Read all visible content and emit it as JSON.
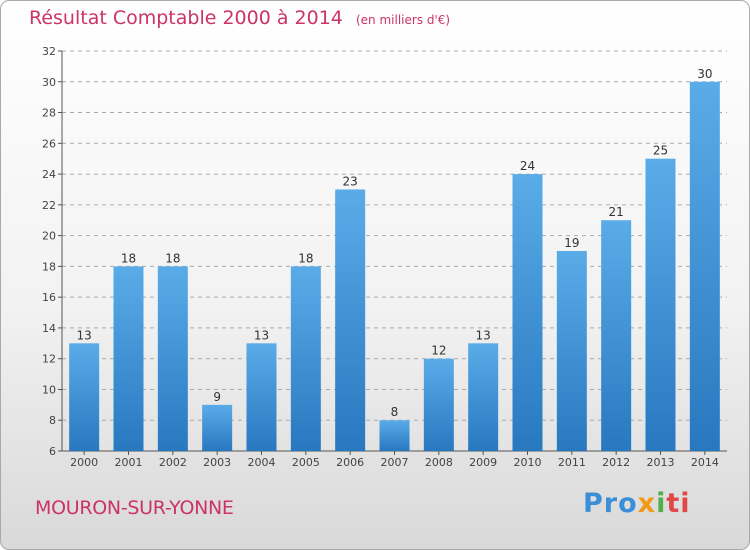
{
  "title": "Résultat Comptable 2000 à 2014",
  "subtitle": "(en milliers d'€)",
  "city": "MOURON-SUR-YONNE",
  "logo": {
    "brand": "Proxiti",
    "parts": [
      "Pro",
      "x",
      "i",
      "ti"
    ]
  },
  "colors": {
    "title": "#cc3366",
    "bar_light": "#5aace8",
    "bar_dark": "#2878c0",
    "axis": "#555555",
    "grid": "#aaaaaa"
  },
  "chart_data": {
    "type": "bar",
    "title": "Résultat Comptable 2000 à 2014",
    "xlabel": "",
    "ylabel": "",
    "categories": [
      "2000",
      "2001",
      "2002",
      "2003",
      "2004",
      "2005",
      "2006",
      "2007",
      "2008",
      "2009",
      "2010",
      "2011",
      "2012",
      "2013",
      "2014"
    ],
    "values": [
      13,
      18,
      18,
      9,
      13,
      18,
      23,
      8,
      12,
      13,
      24,
      19,
      21,
      25,
      30
    ],
    "ylim": [
      6,
      32
    ],
    "yticks": [
      6,
      8,
      10,
      12,
      14,
      16,
      18,
      20,
      22,
      24,
      26,
      28,
      30,
      32
    ],
    "grid": true
  }
}
